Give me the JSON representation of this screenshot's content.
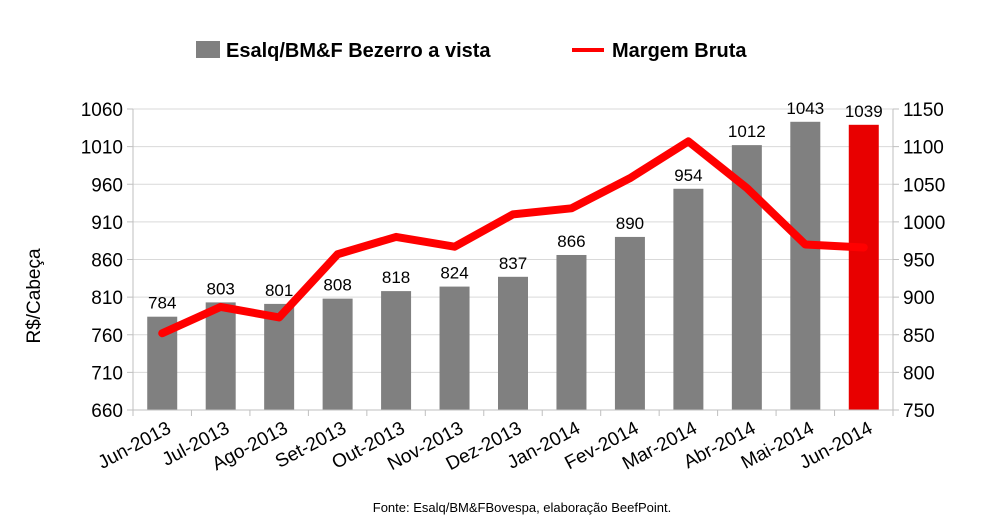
{
  "chart_data": {
    "type": "bar",
    "categories": [
      "Jun-2013",
      "Jul-2013",
      "Ago-2013",
      "Set-2013",
      "Out-2013",
      "Nov-2013",
      "Dez-2013",
      "Jan-2014",
      "Fev-2014",
      "Mar-2014",
      "Abr-2014",
      "Mai-2014",
      "Jun-2014"
    ],
    "series": [
      {
        "name": "Esalq/BM&F Bezerro a vista",
        "type": "bar",
        "axis": "left",
        "color": "#808080",
        "highlight_color": "#e80000",
        "highlight_index": 12,
        "values": [
          784,
          803,
          801,
          808,
          818,
          824,
          837,
          866,
          890,
          954,
          1012,
          1043,
          1039
        ]
      },
      {
        "name": "Margem Bruta",
        "type": "line",
        "axis": "right",
        "color": "#ff0000",
        "values": [
          852,
          887,
          873,
          957,
          980,
          967,
          1010,
          1018,
          1058,
          1107,
          1045,
          970,
          966
        ]
      }
    ],
    "ylabel": "R$/Cabeça",
    "ylim": [
      660,
      1060
    ],
    "yticks": [
      "660",
      "710",
      "760",
      "810",
      "860",
      "910",
      "960",
      "1010",
      "1060"
    ],
    "y2lim": [
      750,
      1150
    ],
    "y2ticks": [
      "750",
      "800",
      "850",
      "900",
      "950",
      "1000",
      "1050",
      "1100",
      "1150"
    ],
    "legend_position": "top",
    "source": "Fonte:  Esalq/BM&FBovespa,  elaboração  BeefPoint."
  }
}
